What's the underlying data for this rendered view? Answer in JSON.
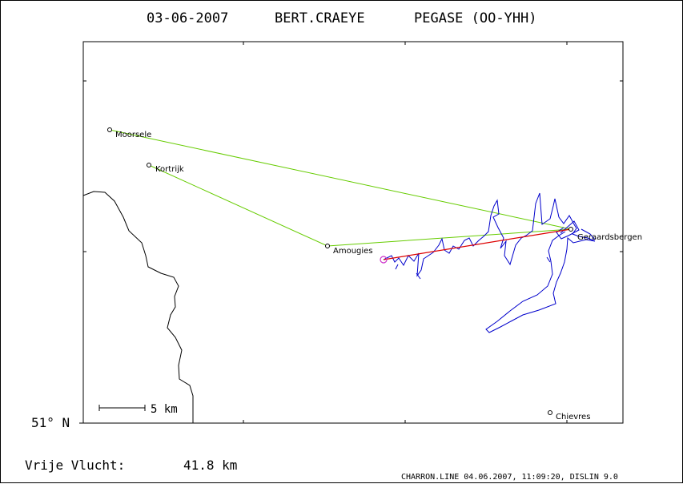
{
  "header": {
    "date": "03-06-2007",
    "pilot": "BERT.CRAEYE",
    "glider": "PEGASE (OO-YHH)"
  },
  "map": {
    "latitude_label": "51° N",
    "scale_label": "5 km",
    "places": [
      {
        "name": "Moorsele"
      },
      {
        "name": "Kortrijk"
      },
      {
        "name": "Amougies"
      },
      {
        "name": "Geraardsbergen"
      },
      {
        "name": "Chievres"
      }
    ],
    "colors": {
      "coast": "#000000",
      "route": "#66cc00",
      "track": "#0000cc",
      "straight": "#dd0000",
      "start": "#cc33cc"
    }
  },
  "footer": {
    "distance_label": "Vrije Vlucht:",
    "distance_value": "41.8 km",
    "credit": "CHARRON.LINE 04.06.2007, 11:09:20, DISLIN 9.0"
  }
}
